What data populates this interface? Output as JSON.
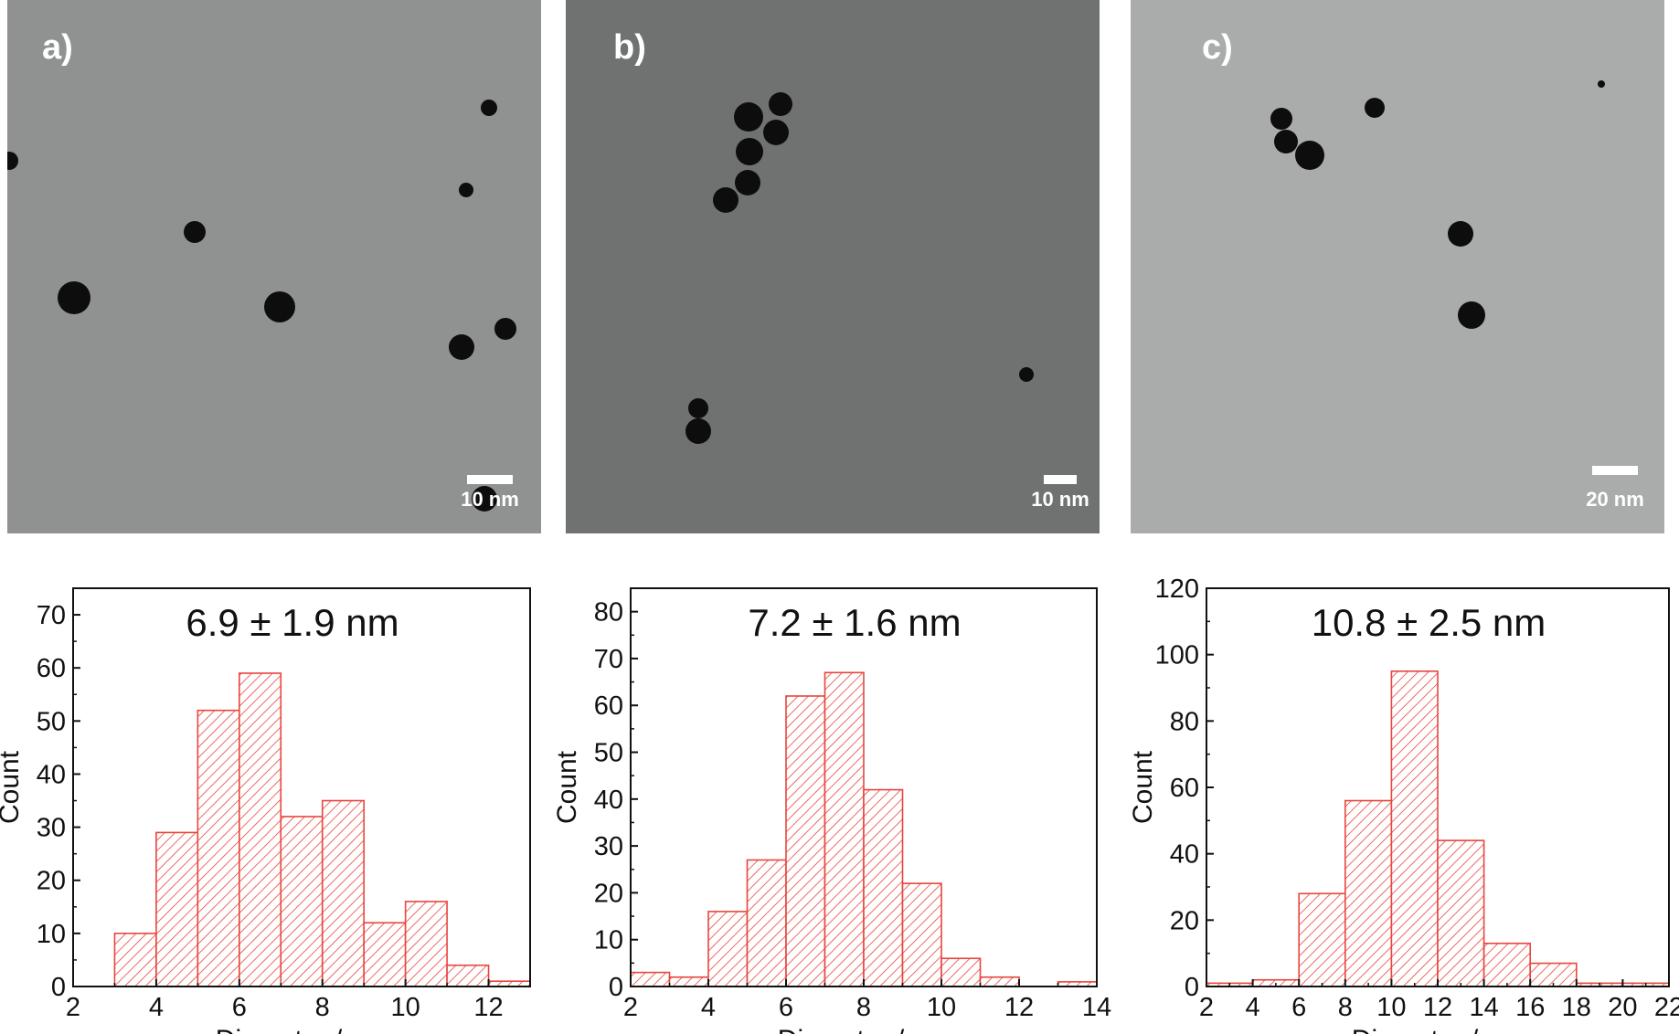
{
  "tem_panels": [
    {
      "label": "a)",
      "scale_bar": "10 nm",
      "background": "#8f9291"
    },
    {
      "label": "b)",
      "scale_bar": "10 nm",
      "background": "#6f7271"
    },
    {
      "label": "c)",
      "scale_bar": "20 nm",
      "background": "#a9acab"
    }
  ],
  "colors": {
    "bar_stroke": "#e8453c",
    "particle": "#0d0d0d"
  },
  "chart_data": [
    {
      "type": "bar",
      "title": "6.9 ± 1.9 nm",
      "xlabel": "Diameter / nm",
      "ylabel": "Count",
      "xlim": [
        2,
        13
      ],
      "ylim": [
        0,
        75
      ],
      "xticks": [
        2,
        4,
        6,
        8,
        10,
        12
      ],
      "yticks": [
        0,
        10,
        20,
        30,
        40,
        50,
        60,
        70
      ],
      "bins": [
        [
          3,
          4
        ],
        [
          4,
          5
        ],
        [
          5,
          6
        ],
        [
          6,
          7
        ],
        [
          7,
          8
        ],
        [
          8,
          9
        ],
        [
          9,
          10
        ],
        [
          10,
          11
        ],
        [
          11,
          12
        ],
        [
          12,
          13
        ]
      ],
      "values": [
        10,
        29,
        52,
        59,
        32,
        35,
        12,
        16,
        4,
        1
      ]
    },
    {
      "type": "bar",
      "title": "7.2 ± 1.6 nm",
      "xlabel": "Diameter / nm",
      "ylabel": "Count",
      "xlim": [
        2,
        14
      ],
      "ylim": [
        0,
        85
      ],
      "xticks": [
        2,
        4,
        6,
        8,
        10,
        12,
        14
      ],
      "yticks": [
        0,
        10,
        20,
        30,
        40,
        50,
        60,
        70,
        80
      ],
      "bins": [
        [
          2,
          3
        ],
        [
          3,
          4
        ],
        [
          4,
          5
        ],
        [
          5,
          6
        ],
        [
          6,
          7
        ],
        [
          7,
          8
        ],
        [
          8,
          9
        ],
        [
          9,
          10
        ],
        [
          10,
          11
        ],
        [
          11,
          12
        ],
        [
          12,
          13
        ],
        [
          13,
          14
        ]
      ],
      "values": [
        3,
        2,
        16,
        27,
        62,
        67,
        42,
        22,
        6,
        2,
        0,
        1
      ]
    },
    {
      "type": "bar",
      "title": "10.8 ± 2.5 nm",
      "xlabel": "Diameter / nm",
      "ylabel": "Count",
      "xlim": [
        2,
        22
      ],
      "ylim": [
        0,
        120
      ],
      "xticks": [
        2,
        4,
        6,
        8,
        10,
        12,
        14,
        16,
        18,
        20,
        22
      ],
      "yticks": [
        0,
        20,
        40,
        60,
        80,
        100,
        120
      ],
      "bins": [
        [
          2,
          4
        ],
        [
          4,
          6
        ],
        [
          6,
          8
        ],
        [
          8,
          10
        ],
        [
          10,
          12
        ],
        [
          12,
          14
        ],
        [
          14,
          16
        ],
        [
          16,
          18
        ],
        [
          18,
          20
        ],
        [
          20,
          22
        ]
      ],
      "values": [
        1,
        2,
        28,
        56,
        95,
        44,
        13,
        7,
        1,
        1
      ]
    }
  ]
}
